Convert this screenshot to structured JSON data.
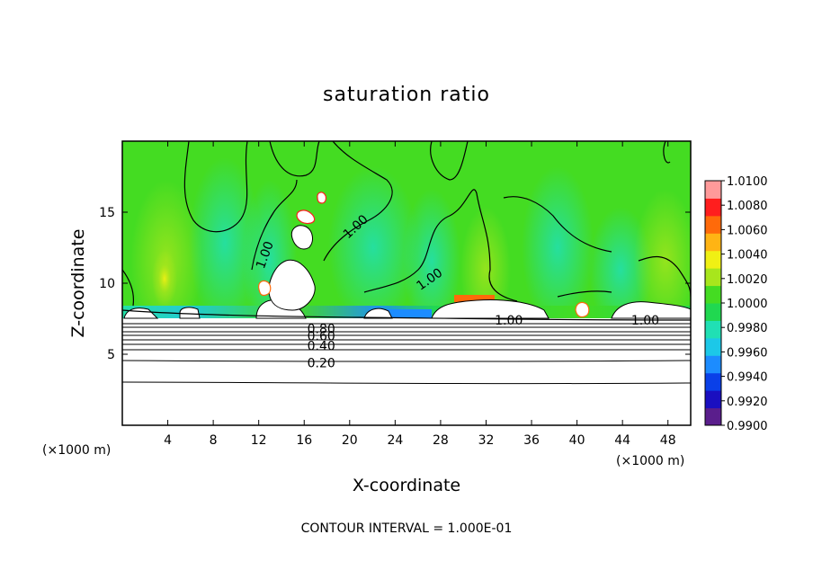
{
  "chart_data": {
    "type": "heatmap",
    "title": "saturation ratio",
    "xlabel": "X-coordinate",
    "ylabel": "Z-coordinate",
    "x_units_left": "(×1000 m)",
    "x_units_right": "(×1000 m)",
    "xlim": [
      0,
      50
    ],
    "ylim": [
      0,
      20
    ],
    "x_ticks": [
      4,
      8,
      12,
      16,
      20,
      24,
      28,
      32,
      36,
      40,
      44,
      48
    ],
    "y_ticks": [
      5,
      10,
      15
    ],
    "colorbar": {
      "ticks": [
        "1.0100",
        "1.0080",
        "1.0060",
        "1.0040",
        "1.0020",
        "1.0000",
        "0.9980",
        "0.9960",
        "0.9940",
        "0.9920",
        "0.9900"
      ],
      "min": 0.99,
      "max": 1.01,
      "colors": [
        "#5a1e8c",
        "#1a0fc0",
        "#0a40e8",
        "#1c8cff",
        "#1cc8e8",
        "#20e0b4",
        "#20d850",
        "#44dc22",
        "#a8e61c",
        "#f0f014",
        "#ffb414",
        "#ff6a0a",
        "#ff1e1e",
        "#ff9a9a"
      ]
    },
    "contour_labels": [
      {
        "text": "1.00",
        "x": 12.5,
        "z": 12.0,
        "angle": -70
      },
      {
        "text": "1.00",
        "x": 20.5,
        "z": 14.0,
        "angle": -42
      },
      {
        "text": "1.00",
        "x": 27.0,
        "z": 10.3,
        "angle": -35
      },
      {
        "text": "1.00",
        "x": 34.0,
        "z": 7.4,
        "angle": 0
      },
      {
        "text": "1.00",
        "x": 46.0,
        "z": 7.4,
        "angle": 0
      },
      {
        "text": "0.80",
        "x": 17.5,
        "z": 6.8,
        "angle": 0
      },
      {
        "text": "0.60",
        "x": 17.5,
        "z": 6.3,
        "angle": 0
      },
      {
        "text": "0.40",
        "x": 17.5,
        "z": 5.6,
        "angle": 0
      },
      {
        "text": "0.20",
        "x": 17.5,
        "z": 4.4,
        "angle": 0
      }
    ],
    "contour_interval": 0.1,
    "footer": "CONTOUR INTERVAL = 1.000E-01"
  }
}
